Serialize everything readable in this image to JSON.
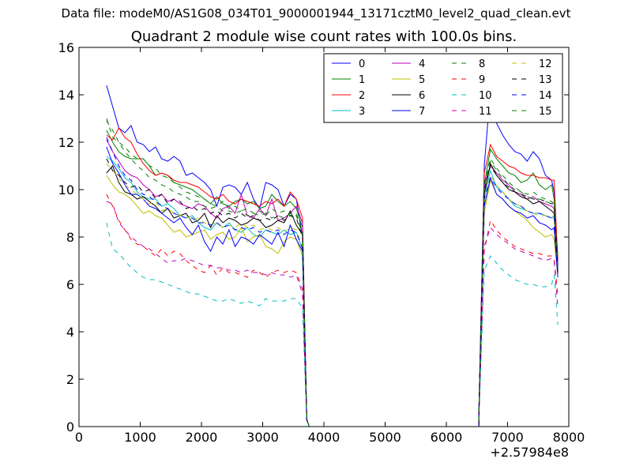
{
  "chart_data": {
    "type": "line",
    "suptitle": "Data file: modeM0/AS1G08_034T01_9000001944_13171cztM0_level2_quad_clean.evt",
    "title": "Quadrant 2 module wise count rates with 100.0s bins.",
    "xlabel": "",
    "ylabel": "",
    "x_offset_label": "+2.57984e8",
    "xlim": [
      0,
      8000
    ],
    "ylim": [
      0,
      16
    ],
    "x_ticks": [
      0,
      1000,
      2000,
      3000,
      4000,
      5000,
      6000,
      7000,
      8000
    ],
    "y_ticks": [
      0,
      2,
      4,
      6,
      8,
      10,
      12,
      14,
      16
    ],
    "grid": false,
    "legend_position": "top-right",
    "legend_columns": 4,
    "segment1_x": [
      450,
      550,
      650,
      750,
      850,
      950,
      1050,
      1150,
      1250,
      1350,
      1450,
      1550,
      1650,
      1750,
      1850,
      1950,
      2050,
      2150,
      2250,
      2350,
      2450,
      2550,
      2650,
      2750,
      2850,
      2950,
      3050,
      3150,
      3250,
      3350,
      3450,
      3550,
      3650
    ],
    "drop_x": [
      3720,
      3760
    ],
    "gap_zero_x": [
      3760,
      6530
    ],
    "segment2_x": [
      6530,
      6620,
      6720,
      6820,
      6920,
      7020,
      7120,
      7220,
      7320,
      7420,
      7520,
      7620,
      7720,
      7760,
      7820
    ],
    "series": [
      {
        "name": "0",
        "color": "#0000ff",
        "dash": "solid",
        "seg1": [
          14.4,
          13.5,
          12.6,
          12.4,
          12.7,
          12.0,
          11.9,
          11.6,
          11.8,
          11.3,
          11.2,
          11.4,
          11.2,
          10.6,
          10.7,
          10.5,
          10.3,
          10.0,
          9.3,
          10.1,
          10.2,
          10.1,
          9.8,
          10.3,
          9.6,
          9.2,
          10.3,
          10.2,
          10.0,
          9.3,
          9.8,
          9.6,
          8.0
        ],
        "seg2": [
          0.5,
          11.0,
          14.2,
          12.8,
          12.3,
          11.9,
          11.6,
          11.5,
          11.2,
          11.6,
          11.3,
          10.6,
          10.4,
          9.9,
          6.8
        ]
      },
      {
        "name": "1",
        "color": "#008000",
        "dash": "solid",
        "seg1": [
          12.5,
          12.0,
          11.6,
          11.4,
          11.3,
          11.3,
          11.3,
          11.0,
          10.6,
          10.7,
          10.6,
          10.3,
          10.2,
          10.1,
          10.0,
          9.8,
          9.6,
          9.4,
          9.7,
          9.4,
          9.3,
          9.5,
          9.6,
          9.4,
          9.5,
          9.2,
          9.3,
          9.8,
          9.5,
          9.3,
          9.5,
          9.2,
          8.4
        ],
        "seg2": [
          0.4,
          10.2,
          11.7,
          11.3,
          11.0,
          10.7,
          10.6,
          10.3,
          10.4,
          10.7,
          10.2,
          10.0,
          10.2,
          9.6,
          7.2
        ]
      },
      {
        "name": "2",
        "color": "#ff0000",
        "dash": "solid",
        "seg1": [
          12.3,
          12.1,
          12.6,
          12.2,
          12.0,
          11.5,
          11.1,
          10.8,
          10.6,
          10.7,
          10.6,
          10.4,
          10.3,
          10.3,
          10.2,
          10.1,
          9.9,
          9.7,
          9.6,
          9.8,
          9.5,
          9.4,
          9.6,
          9.5,
          9.4,
          9.3,
          9.5,
          9.4,
          9.6,
          9.3,
          9.9,
          9.6,
          8.8
        ],
        "seg2": [
          0.5,
          10.7,
          11.9,
          11.4,
          11.2,
          11.0,
          10.9,
          10.7,
          10.6,
          10.6,
          10.5,
          10.5,
          10.4,
          10.4,
          7.0
        ]
      },
      {
        "name": "3",
        "color": "#00bfbf",
        "dash": "solid",
        "seg1": [
          11.4,
          11.2,
          10.9,
          10.5,
          10.3,
          9.9,
          9.7,
          9.6,
          9.6,
          9.3,
          9.4,
          9.2,
          8.9,
          8.8,
          8.9,
          8.6,
          8.4,
          8.3,
          8.6,
          8.4,
          8.6,
          8.3,
          8.2,
          8.4,
          8.1,
          8.0,
          8.3,
          8.2,
          8.1,
          8.3,
          8.1,
          8.2,
          7.5
        ],
        "seg2": [
          0.4,
          9.6,
          10.8,
          10.1,
          9.9,
          9.6,
          9.3,
          9.2,
          9.1,
          9.0,
          9.0,
          8.9,
          8.8,
          8.9,
          6.6
        ]
      },
      {
        "name": "4",
        "color": "#bf00bf",
        "dash": "solid",
        "seg1": [
          12.1,
          11.6,
          11.2,
          10.8,
          10.6,
          10.5,
          10.2,
          10.0,
          9.7,
          9.8,
          9.5,
          9.6,
          9.4,
          9.3,
          9.2,
          9.4,
          9.3,
          9.0,
          8.8,
          9.2,
          9.3,
          9.0,
          9.8,
          8.9,
          8.8,
          9.2,
          8.9,
          9.6,
          8.7,
          8.8,
          9.0,
          9.3,
          8.6
        ],
        "seg2": [
          0.4,
          10.2,
          11.0,
          10.7,
          10.4,
          10.2,
          9.9,
          9.8,
          9.6,
          9.7,
          9.5,
          9.4,
          9.3,
          9.2,
          6.9
        ]
      },
      {
        "name": "5",
        "color": "#bfbf00",
        "dash": "solid",
        "seg1": [
          10.6,
          10.2,
          9.9,
          9.8,
          9.6,
          9.3,
          9.0,
          9.1,
          8.9,
          8.8,
          8.5,
          8.2,
          8.3,
          8.0,
          8.1,
          8.2,
          8.3,
          7.9,
          8.1,
          8.2,
          7.9,
          8.0,
          8.4,
          7.8,
          8.0,
          8.1,
          7.6,
          7.5,
          7.3,
          7.8,
          8.0,
          7.9,
          7.2
        ],
        "seg2": [
          0.4,
          9.0,
          10.4,
          9.8,
          9.6,
          9.3,
          9.1,
          8.9,
          8.7,
          8.4,
          8.2,
          8.0,
          8.1,
          7.9,
          6.4
        ]
      },
      {
        "name": "6",
        "color": "#000000",
        "dash": "solid",
        "seg1": [
          10.7,
          11.0,
          10.3,
          9.9,
          9.8,
          9.6,
          9.7,
          9.5,
          9.3,
          9.0,
          9.2,
          8.8,
          8.9,
          9.0,
          8.6,
          8.7,
          9.0,
          8.4,
          8.9,
          8.6,
          8.8,
          8.7,
          8.5,
          8.6,
          8.8,
          8.7,
          8.4,
          8.5,
          8.7,
          8.6,
          9.1,
          8.5,
          8.1
        ],
        "seg2": [
          0.4,
          9.8,
          11.1,
          10.6,
          10.3,
          10.0,
          9.9,
          9.7,
          9.6,
          9.4,
          9.5,
          9.3,
          9.1,
          9.0,
          6.5
        ]
      },
      {
        "name": "7",
        "color": "#0000ff",
        "dash": "solid",
        "seg1": [
          11.8,
          11.1,
          10.7,
          10.2,
          9.8,
          9.8,
          9.6,
          9.3,
          9.2,
          9.0,
          8.8,
          8.6,
          8.8,
          8.4,
          8.1,
          8.5,
          7.8,
          7.4,
          8.0,
          7.7,
          8.3,
          7.6,
          8.0,
          7.9,
          7.7,
          8.1,
          7.9,
          7.7,
          8.2,
          7.6,
          8.5,
          7.9,
          7.4
        ],
        "seg2": [
          0.4,
          9.3,
          10.5,
          9.8,
          9.6,
          9.3,
          9.1,
          9.0,
          8.8,
          8.9,
          8.6,
          8.5,
          8.3,
          8.4,
          6.3
        ]
      },
      {
        "name": "8",
        "color": "#008000",
        "dash": "dashed",
        "seg1": [
          13.0,
          12.2,
          12.0,
          11.8,
          11.5,
          11.3,
          11.3,
          11.0,
          10.9,
          10.6,
          10.5,
          10.3,
          10.1,
          9.9,
          9.8,
          9.7,
          9.6,
          9.4,
          9.3,
          9.5,
          9.2,
          9.3,
          9.1,
          9.2,
          9.0,
          9.1,
          8.9,
          9.2,
          9.0,
          9.1,
          8.9,
          9.0,
          8.2
        ],
        "seg2": [
          0.4,
          10.3,
          11.3,
          10.9,
          10.6,
          10.3,
          10.1,
          9.9,
          9.8,
          9.9,
          9.7,
          9.6,
          9.5,
          9.4,
          6.9
        ]
      },
      {
        "name": "9",
        "color": "#ff0000",
        "dash": "dashed",
        "seg1": [
          9.8,
          9.3,
          8.7,
          8.3,
          7.9,
          7.7,
          7.6,
          7.4,
          7.2,
          7.5,
          7.2,
          7.4,
          7.3,
          7.0,
          6.8,
          6.6,
          6.5,
          6.8,
          6.4,
          6.7,
          6.5,
          6.5,
          6.4,
          6.3,
          6.6,
          6.5,
          6.3,
          6.5,
          6.6,
          6.5,
          6.6,
          6.5,
          5.8
        ],
        "seg2": [
          0.3,
          7.4,
          8.7,
          8.3,
          8.0,
          7.8,
          7.6,
          7.5,
          7.4,
          7.3,
          7.3,
          7.2,
          7.2,
          7.1,
          5.5
        ]
      },
      {
        "name": "10",
        "color": "#00bfbf",
        "dash": "dashed",
        "seg1": [
          8.6,
          7.5,
          7.3,
          7.0,
          6.7,
          6.5,
          6.3,
          6.2,
          6.2,
          6.1,
          6.0,
          5.9,
          5.8,
          5.7,
          5.6,
          5.6,
          5.5,
          5.4,
          5.3,
          5.3,
          5.4,
          5.3,
          5.2,
          5.3,
          5.2,
          5.1,
          5.4,
          5.3,
          5.3,
          5.3,
          5.4,
          5.4,
          5.0
        ],
        "seg2": [
          0.3,
          6.6,
          7.2,
          6.9,
          6.6,
          6.4,
          6.2,
          6.1,
          6.0,
          6.0,
          5.9,
          5.9,
          6.0,
          6.4,
          4.3
        ]
      },
      {
        "name": "11",
        "color": "#bf00bf",
        "dash": "dashed",
        "seg1": [
          9.5,
          9.4,
          8.6,
          8.3,
          8.0,
          7.8,
          7.6,
          7.5,
          7.3,
          7.1,
          6.9,
          7.0,
          7.0,
          7.1,
          7.0,
          6.9,
          6.8,
          6.8,
          6.7,
          6.7,
          6.6,
          6.6,
          6.5,
          6.6,
          6.5,
          6.5,
          6.4,
          6.5,
          6.4,
          6.4,
          6.3,
          6.4,
          5.6
        ],
        "seg2": [
          0.3,
          7.6,
          8.4,
          8.1,
          7.9,
          7.7,
          7.5,
          7.4,
          7.3,
          7.2,
          7.1,
          7.0,
          7.1,
          7.0,
          5.0
        ]
      },
      {
        "name": "12",
        "color": "#bfbf00",
        "dash": "dashed",
        "seg1": [
          11.1,
          10.8,
          10.5,
          10.2,
          10.0,
          9.8,
          9.6,
          9.4,
          9.5,
          9.1,
          9.2,
          9.0,
          8.9,
          8.9,
          8.7,
          8.8,
          8.6,
          8.5,
          8.6,
          8.4,
          8.5,
          8.4,
          8.6,
          8.4,
          8.5,
          8.3,
          8.4,
          8.3,
          8.4,
          8.2,
          8.4,
          8.3,
          7.6
        ],
        "seg2": [
          0.4,
          9.4,
          10.6,
          10.2,
          9.9,
          9.6,
          9.4,
          9.3,
          9.1,
          9.0,
          8.9,
          8.9,
          8.8,
          8.8,
          6.6
        ]
      },
      {
        "name": "13",
        "color": "#000000",
        "dash": "dashed",
        "seg1": [
          11.3,
          10.8,
          10.6,
          10.3,
          10.1,
          10.2,
          9.9,
          10.0,
          9.6,
          9.8,
          9.4,
          9.6,
          9.5,
          9.2,
          9.3,
          9.1,
          9.2,
          9.0,
          9.1,
          8.9,
          9.0,
          8.8,
          9.0,
          8.8,
          8.9,
          8.7,
          8.8,
          8.7,
          8.9,
          8.7,
          8.9,
          8.8,
          8.0
        ],
        "seg2": [
          0.4,
          10.0,
          11.0,
          10.6,
          10.3,
          10.1,
          9.9,
          9.8,
          9.7,
          9.6,
          9.6,
          9.5,
          9.4,
          9.4,
          6.8
        ]
      },
      {
        "name": "14",
        "color": "#0000ff",
        "dash": "dashed",
        "seg1": [
          12.2,
          11.6,
          11.0,
          10.6,
          10.4,
          10.0,
          9.8,
          9.7,
          9.5,
          9.3,
          9.2,
          9.0,
          8.9,
          8.8,
          8.8,
          8.6,
          8.6,
          8.5,
          8.6,
          8.4,
          8.5,
          8.3,
          8.4,
          8.3,
          8.4,
          8.2,
          8.3,
          8.2,
          8.3,
          8.1,
          8.3,
          8.2,
          7.5
        ],
        "seg2": [
          0.4,
          9.6,
          10.5,
          10.1,
          9.8,
          9.6,
          9.4,
          9.3,
          9.1,
          9.0,
          9.0,
          8.9,
          8.8,
          8.9,
          6.6
        ]
      },
      {
        "name": "15",
        "color": "#008000",
        "dash": "dashed",
        "seg1": [
          12.9,
          12.5,
          12.0,
          11.6,
          11.3,
          11.0,
          10.8,
          10.5,
          10.4,
          10.2,
          10.1,
          9.9,
          9.8,
          9.7,
          9.5,
          9.5,
          9.3,
          9.2,
          9.3,
          9.1,
          9.1,
          9.0,
          9.1,
          8.9,
          9.0,
          8.9,
          9.0,
          8.8,
          8.9,
          8.8,
          9.0,
          8.9,
          8.1
        ],
        "seg2": [
          0.4,
          10.1,
          11.2,
          10.8,
          10.5,
          10.2,
          10.0,
          9.9,
          9.7,
          9.6,
          9.6,
          9.5,
          9.4,
          9.4,
          6.8
        ]
      }
    ]
  }
}
